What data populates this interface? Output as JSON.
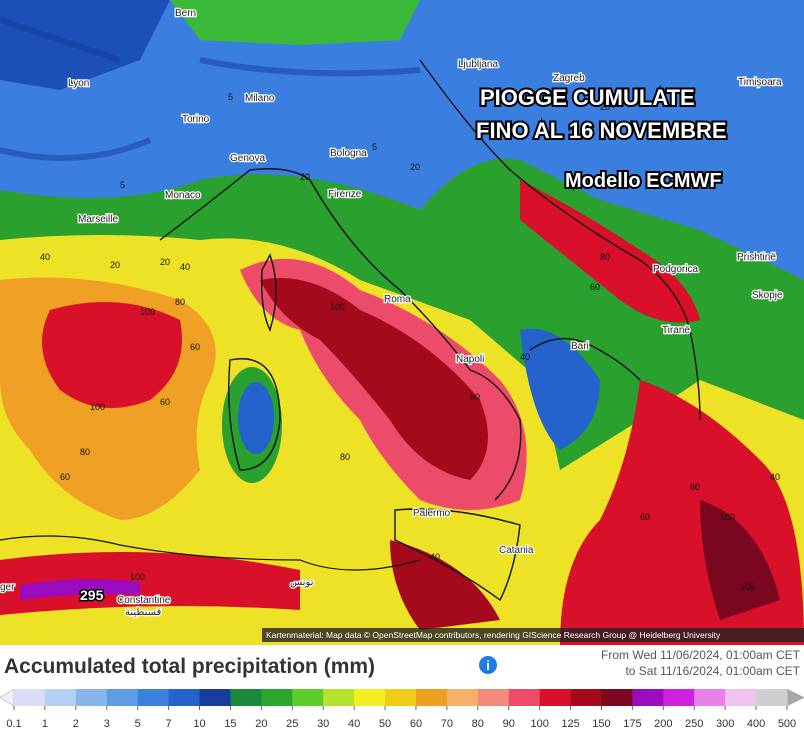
{
  "overlay": {
    "line1": "PIOGGE CUMULATE",
    "line2": "FINO AL 16 NOVEMBRE",
    "line3": "Modello ECMWF"
  },
  "cities": [
    "Bern",
    "Lyon",
    "Milano",
    "Torino",
    "Genova",
    "Bologna",
    "Monaco",
    "Marseille",
    "Firenze",
    "Ljubljana",
    "Zagreb",
    "Timișoara",
    "Roma",
    "Podgorica",
    "Prishtinë",
    "Skopje",
    "Tiranë",
    "Bari",
    "Napoli",
    "Palermo",
    "Catania",
    "Constantine",
    "قسنطينة",
    "تونس",
    "ger"
  ],
  "contour_labels": [
    "5",
    "5",
    "5",
    "20",
    "20",
    "40",
    "20",
    "40",
    "60",
    "80",
    "100",
    "60",
    "100",
    "80",
    "60",
    "100",
    "100",
    "80",
    "20",
    "40",
    "60",
    "40",
    "60",
    "80",
    "100",
    "60",
    "80",
    "100",
    "40",
    "20"
  ],
  "max_label": "295",
  "attribution": "Kartenmaterial: Map data © OpenStreetMap contributors, rendering GIScience Research Group @ Heidelberg University",
  "legend": {
    "title": "Accumulated total precipitation (mm)",
    "info_icon": "i",
    "from": "From Wed 11/06/2024, 01:00am CET",
    "to": "to Sat 11/16/2024, 01:00am CET",
    "values": [
      0.1,
      1,
      2,
      3,
      5,
      7,
      10,
      15,
      20,
      25,
      30,
      40,
      50,
      60,
      70,
      80,
      90,
      100,
      125,
      150,
      175,
      200,
      250,
      300,
      400,
      500
    ],
    "colors": [
      "#dcdcf6",
      "#b4d0f2",
      "#88b6ec",
      "#5e9ce6",
      "#3c7fdc",
      "#2462cc",
      "#163c9e",
      "#1a8a3a",
      "#2aa62c",
      "#5ccc2c",
      "#b6e42c",
      "#f2ee22",
      "#f0cc1a",
      "#f0a020",
      "#f6b06a",
      "#f48a7a",
      "#ec4c6a",
      "#d8102a",
      "#a40a1c",
      "#7a0620",
      "#9a0cc0",
      "#d020e0",
      "#e880e8",
      "#f0c4f0",
      "#cfcfcf"
    ],
    "under_color": "#efeffa",
    "over_color": "#a8a8a8"
  }
}
